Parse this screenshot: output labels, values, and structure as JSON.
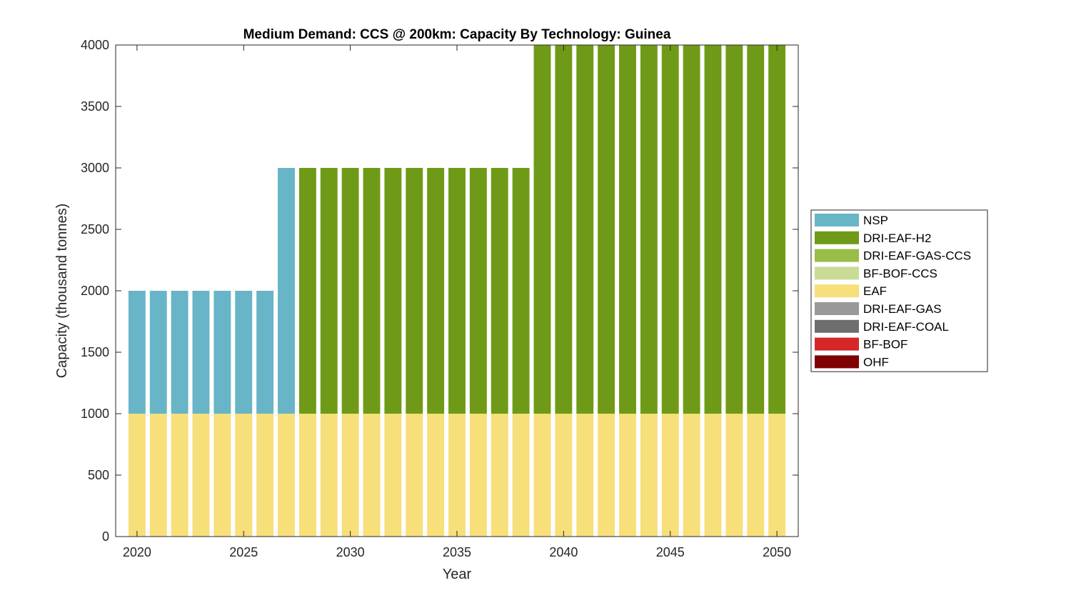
{
  "chart_data": {
    "type": "bar",
    "stacked": true,
    "title": "Medium Demand: CCS @ 200km: Capacity By Technology: Guinea",
    "xlabel": "Year",
    "ylabel": "Capacity (thousand tonnes)",
    "xlim": [
      2019,
      2051
    ],
    "ylim": [
      0,
      4000
    ],
    "xticks": [
      2020,
      2025,
      2030,
      2035,
      2040,
      2045,
      2050
    ],
    "yticks": [
      0,
      500,
      1000,
      1500,
      2000,
      2500,
      3000,
      3500,
      4000
    ],
    "grid": false,
    "legend_position": "right",
    "categories": [
      2020,
      2021,
      2022,
      2023,
      2024,
      2025,
      2026,
      2027,
      2028,
      2029,
      2030,
      2031,
      2032,
      2033,
      2034,
      2035,
      2036,
      2037,
      2038,
      2039,
      2040,
      2041,
      2042,
      2043,
      2044,
      2045,
      2046,
      2047,
      2048,
      2049,
      2050
    ],
    "series": [
      {
        "name": "OHF",
        "color": "#7f0000",
        "values": [
          0,
          0,
          0,
          0,
          0,
          0,
          0,
          0,
          0,
          0,
          0,
          0,
          0,
          0,
          0,
          0,
          0,
          0,
          0,
          0,
          0,
          0,
          0,
          0,
          0,
          0,
          0,
          0,
          0,
          0,
          0
        ]
      },
      {
        "name": "BF-BOF",
        "color": "#d62728",
        "values": [
          0,
          0,
          0,
          0,
          0,
          0,
          0,
          0,
          0,
          0,
          0,
          0,
          0,
          0,
          0,
          0,
          0,
          0,
          0,
          0,
          0,
          0,
          0,
          0,
          0,
          0,
          0,
          0,
          0,
          0,
          0
        ]
      },
      {
        "name": "DRI-EAF-COAL",
        "color": "#6e6e6e",
        "values": [
          0,
          0,
          0,
          0,
          0,
          0,
          0,
          0,
          0,
          0,
          0,
          0,
          0,
          0,
          0,
          0,
          0,
          0,
          0,
          0,
          0,
          0,
          0,
          0,
          0,
          0,
          0,
          0,
          0,
          0,
          0
        ]
      },
      {
        "name": "DRI-EAF-GAS",
        "color": "#999999",
        "values": [
          0,
          0,
          0,
          0,
          0,
          0,
          0,
          0,
          0,
          0,
          0,
          0,
          0,
          0,
          0,
          0,
          0,
          0,
          0,
          0,
          0,
          0,
          0,
          0,
          0,
          0,
          0,
          0,
          0,
          0,
          0
        ]
      },
      {
        "name": "EAF",
        "color": "#f7df7a",
        "values": [
          1000,
          1000,
          1000,
          1000,
          1000,
          1000,
          1000,
          1000,
          1000,
          1000,
          1000,
          1000,
          1000,
          1000,
          1000,
          1000,
          1000,
          1000,
          1000,
          1000,
          1000,
          1000,
          1000,
          1000,
          1000,
          1000,
          1000,
          1000,
          1000,
          1000,
          1000
        ]
      },
      {
        "name": "BF-BOF-CCS",
        "color": "#c9dc97",
        "values": [
          0,
          0,
          0,
          0,
          0,
          0,
          0,
          0,
          0,
          0,
          0,
          0,
          0,
          0,
          0,
          0,
          0,
          0,
          0,
          0,
          0,
          0,
          0,
          0,
          0,
          0,
          0,
          0,
          0,
          0,
          0
        ]
      },
      {
        "name": "DRI-EAF-GAS-CCS",
        "color": "#98bd48",
        "values": [
          0,
          0,
          0,
          0,
          0,
          0,
          0,
          0,
          0,
          0,
          0,
          0,
          0,
          0,
          0,
          0,
          0,
          0,
          0,
          0,
          0,
          0,
          0,
          0,
          0,
          0,
          0,
          0,
          0,
          0,
          0
        ]
      },
      {
        "name": "DRI-EAF-H2",
        "color": "#6f9a17",
        "values": [
          0,
          0,
          0,
          0,
          0,
          0,
          0,
          0,
          2000,
          2000,
          2000,
          2000,
          2000,
          2000,
          2000,
          2000,
          2000,
          2000,
          2000,
          3000,
          3000,
          3000,
          3000,
          3000,
          3000,
          3000,
          3000,
          3000,
          3000,
          3000,
          3000
        ]
      },
      {
        "name": "NSP",
        "color": "#67b5c6",
        "values": [
          1000,
          1000,
          1000,
          1000,
          1000,
          1000,
          1000,
          2000,
          0,
          0,
          0,
          0,
          0,
          0,
          0,
          0,
          0,
          0,
          0,
          0,
          0,
          0,
          0,
          0,
          0,
          0,
          0,
          0,
          0,
          0,
          0
        ]
      }
    ],
    "legend_order": [
      "NSP",
      "DRI-EAF-H2",
      "DRI-EAF-GAS-CCS",
      "BF-BOF-CCS",
      "EAF",
      "DRI-EAF-GAS",
      "DRI-EAF-COAL",
      "BF-BOF",
      "OHF"
    ]
  }
}
